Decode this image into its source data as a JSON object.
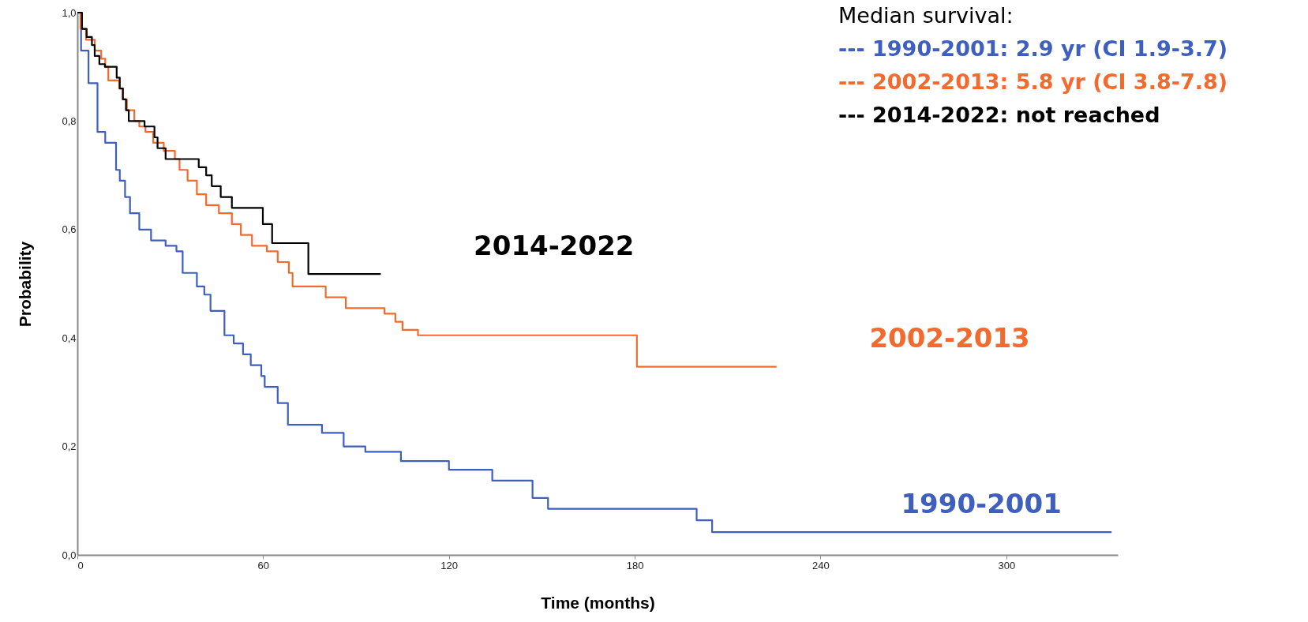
{
  "chart_data": {
    "type": "step",
    "xlabel": "Time (months)",
    "ylabel": "Probability",
    "xlim": [
      0,
      336
    ],
    "xticks": [
      0,
      60,
      120,
      180,
      240,
      300
    ],
    "ylim": [
      0,
      1
    ],
    "yticks": [
      {
        "value": 0,
        "label": "0,0"
      },
      {
        "value": 0.2,
        "label": "0,2"
      },
      {
        "value": 0.4,
        "label": "0,4"
      },
      {
        "value": 0.6,
        "label": "0,6"
      },
      {
        "value": 0.8,
        "label": "0,8"
      },
      {
        "value": 1,
        "label": "1,0"
      }
    ],
    "grid": false,
    "line_style": "solid",
    "series": [
      {
        "name": "1990-2001",
        "color": "#3f5fbf",
        "x": [
          0,
          1.2,
          3.6,
          6.5,
          9,
          12.5,
          13.7,
          15.4,
          17,
          20,
          23.8,
          28.5,
          32,
          34,
          38.6,
          41,
          43,
          47.5,
          50.5,
          53.5,
          56,
          59.4,
          60.5,
          64.7,
          68,
          79,
          86,
          93,
          104.5,
          120,
          134,
          147,
          152,
          200,
          205,
          334
        ],
        "values": [
          1,
          0.93,
          0.87,
          0.78,
          0.76,
          0.71,
          0.69,
          0.66,
          0.63,
          0.6,
          0.58,
          0.57,
          0.56,
          0.52,
          0.495,
          0.48,
          0.45,
          0.405,
          0.39,
          0.37,
          0.35,
          0.33,
          0.31,
          0.28,
          0.24,
          0.225,
          0.2,
          0.19,
          0.173,
          0.157,
          0.137,
          0.105,
          0.085,
          0.064,
          0.042,
          0.042
        ]
      },
      {
        "name": "2002-2013",
        "color": "#f26a2e",
        "x": [
          0,
          1,
          2.8,
          5.6,
          7.7,
          9,
          10,
          13.5,
          14.7,
          16,
          18.4,
          20,
          22,
          24.5,
          27.9,
          31.5,
          33,
          35.6,
          38.6,
          41.6,
          45.7,
          49.9,
          52.8,
          56.4,
          61.2,
          64.7,
          68.3,
          69.5,
          80.2,
          86.7,
          99.2,
          102.7,
          105,
          110,
          180.7,
          225.8
        ],
        "values": [
          1,
          0.97,
          0.95,
          0.93,
          0.915,
          0.9,
          0.875,
          0.86,
          0.84,
          0.82,
          0.8,
          0.79,
          0.78,
          0.76,
          0.745,
          0.73,
          0.71,
          0.69,
          0.665,
          0.645,
          0.63,
          0.61,
          0.59,
          0.57,
          0.56,
          0.54,
          0.52,
          0.495,
          0.475,
          0.455,
          0.445,
          0.43,
          0.415,
          0.405,
          0.347,
          0.347
        ]
      },
      {
        "name": "2014-2022",
        "color": "#000000",
        "x": [
          0,
          1.5,
          3,
          4.7,
          5.6,
          7.1,
          8.9,
          12.7,
          13.7,
          14.7,
          15.7,
          16.6,
          21.7,
          24.9,
          25.9,
          28.5,
          39.2,
          41.6,
          43.4,
          46.3,
          49.9,
          59.9,
          62.9,
          74.6,
          98
        ],
        "values": [
          1,
          0.97,
          0.955,
          0.94,
          0.92,
          0.905,
          0.9,
          0.88,
          0.86,
          0.84,
          0.82,
          0.8,
          0.79,
          0.77,
          0.75,
          0.73,
          0.715,
          0.7,
          0.68,
          0.66,
          0.64,
          0.61,
          0.575,
          0.518,
          0.518
        ]
      }
    ],
    "annotations": [
      "Median survival:",
      "--- 1990-2001: 2.9 yr (CI 1.9-3.7)",
      "--- 2002-2013: 5.8 yr (CI 3.8-7.8)",
      "--- 2014-2022: not reached"
    ]
  }
}
